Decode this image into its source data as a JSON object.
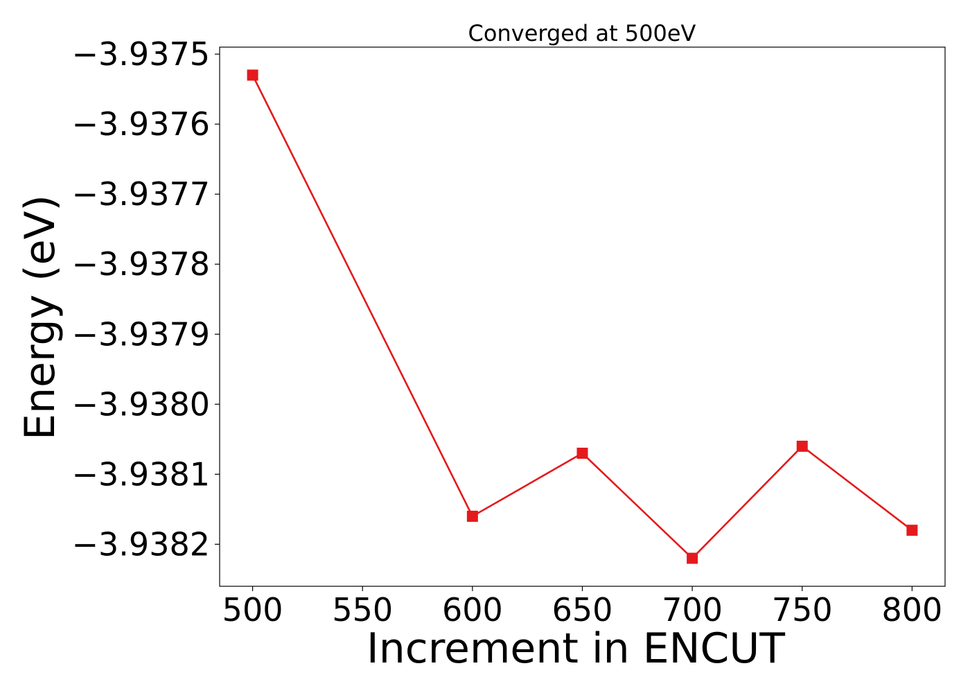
{
  "chart_data": {
    "type": "line",
    "title": "Converged at 500eV",
    "xlabel": "Increment in ENCUT",
    "ylabel": "Energy (eV)",
    "x": [
      500,
      600,
      650,
      700,
      750,
      800
    ],
    "series": [
      {
        "values": [
          -3.93753,
          -3.93816,
          -3.93807,
          -3.93822,
          -3.93806,
          -3.93818
        ],
        "color": "#e41a1c",
        "marker": "square"
      }
    ],
    "xticks": [
      500,
      550,
      600,
      650,
      700,
      750,
      800
    ],
    "xtick_labels": [
      "500",
      "550",
      "600",
      "650",
      "700",
      "750",
      "800"
    ],
    "yticks": [
      -3.9375,
      -3.9376,
      -3.9377,
      -3.9378,
      -3.9379,
      -3.938,
      -3.9381,
      -3.9382
    ],
    "ytick_labels": [
      "−3.9375",
      "−3.9376",
      "−3.9377",
      "−3.9378",
      "−3.9379",
      "−3.9380",
      "−3.9381",
      "−3.9382"
    ],
    "xlim": [
      485,
      815
    ],
    "ylim": [
      -3.93826,
      -3.93749
    ],
    "grid": false,
    "legend": false
  }
}
